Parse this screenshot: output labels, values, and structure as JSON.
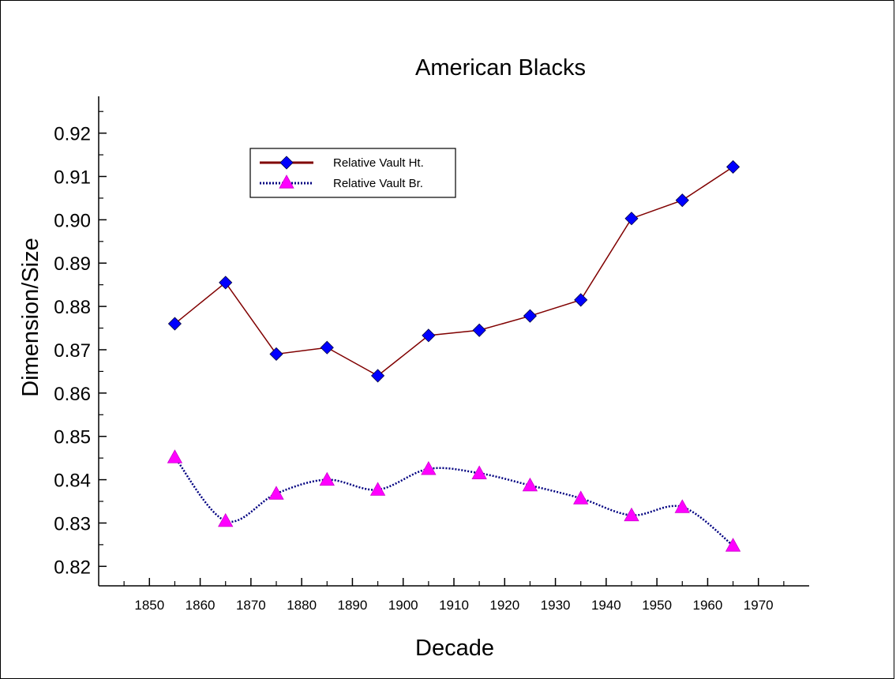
{
  "chart_data": {
    "type": "line",
    "title": "American Blacks",
    "xlabel": "Decade",
    "ylabel": "Dimension/Size",
    "x": [
      1855,
      1865,
      1875,
      1885,
      1895,
      1905,
      1915,
      1925,
      1935,
      1945,
      1955,
      1965
    ],
    "x_ticks": [
      1850,
      1860,
      1870,
      1880,
      1890,
      1900,
      1910,
      1920,
      1930,
      1940,
      1950,
      1960,
      1970
    ],
    "y_ticks": [
      0.82,
      0.83,
      0.84,
      0.85,
      0.86,
      0.87,
      0.88,
      0.89,
      0.9,
      0.91,
      0.92
    ],
    "xlim": [
      1840,
      1980
    ],
    "ylim": [
      0.8155,
      0.9285
    ],
    "grid": false,
    "legend_position": "top-left",
    "series": [
      {
        "name": "Relative Vault Ht.",
        "line_color": "#800000",
        "line_style": "solid",
        "marker": "diamond",
        "marker_color": "#0000ff",
        "values": [
          0.876,
          0.8855,
          0.869,
          0.8705,
          0.864,
          0.8733,
          0.8745,
          0.8778,
          0.8815,
          0.9003,
          0.9045,
          0.9122
        ]
      },
      {
        "name": "Relative Vault Br.",
        "line_color": "#000080",
        "line_style": "dotted",
        "marker": "triangle",
        "marker_color": "#ff00ff",
        "values": [
          0.8452,
          0.8305,
          0.8368,
          0.84,
          0.8377,
          0.8425,
          0.8415,
          0.8387,
          0.8357,
          0.8318,
          0.8337,
          0.8248
        ]
      }
    ]
  }
}
